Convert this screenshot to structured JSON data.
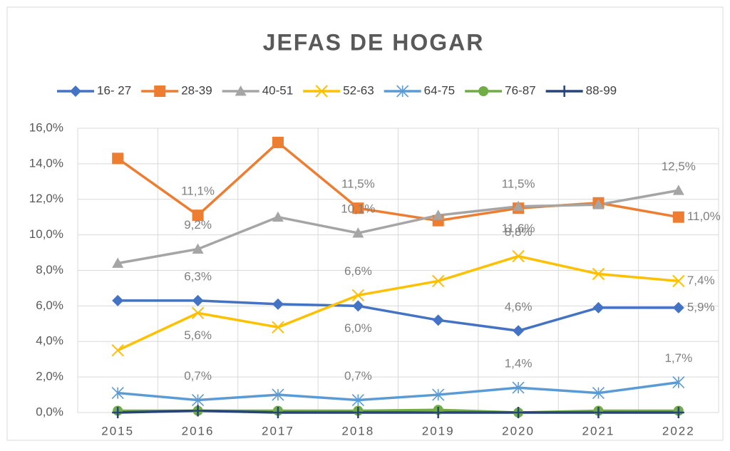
{
  "chart_data": {
    "type": "line",
    "title": "JEFAS DE HOGAR",
    "categories": [
      "2015",
      "2016",
      "2017",
      "2018",
      "2019",
      "2020",
      "2021",
      "2022"
    ],
    "ylim": [
      0,
      16
    ],
    "yticks": [
      {
        "value": 0,
        "label": "0,0%"
      },
      {
        "value": 2,
        "label": "2,0%"
      },
      {
        "value": 4,
        "label": "4,0%"
      },
      {
        "value": 6,
        "label": "6,0%"
      },
      {
        "value": 8,
        "label": "8,0%"
      },
      {
        "value": 10,
        "label": "10,0%"
      },
      {
        "value": 12,
        "label": "12,0%"
      },
      {
        "value": 14,
        "label": "14,0%"
      },
      {
        "value": 16,
        "label": "16,0%"
      }
    ],
    "grid": true,
    "legend": "top",
    "series": [
      {
        "name": "16- 27",
        "color": "#4472c4",
        "marker": "diamond",
        "values": [
          6.3,
          6.3,
          6.1,
          6.0,
          5.2,
          4.6,
          5.9,
          5.9
        ],
        "value_labels": [
          null,
          "6,3%",
          null,
          "6,0%",
          null,
          "4,6%",
          null,
          "5,9%"
        ]
      },
      {
        "name": "28-39",
        "color": "#ed7d31",
        "marker": "square",
        "values": [
          14.3,
          11.1,
          15.2,
          11.5,
          10.8,
          11.5,
          11.8,
          11.0
        ],
        "value_labels": [
          null,
          "11,1%",
          null,
          "11,5%",
          null,
          "11,5%",
          null,
          "11,0%"
        ]
      },
      {
        "name": "40-51",
        "color": "#a5a5a5",
        "marker": "triangle",
        "values": [
          8.4,
          9.2,
          11.0,
          10.1,
          11.1,
          11.6,
          11.7,
          12.5
        ],
        "value_labels": [
          null,
          "9,2%",
          null,
          "10,1%",
          null,
          "11,6%",
          null,
          "12,5%"
        ]
      },
      {
        "name": "52-63",
        "color": "#ffc000",
        "marker": "x",
        "values": [
          3.5,
          5.6,
          4.8,
          6.6,
          7.4,
          8.8,
          7.8,
          7.4
        ],
        "value_labels": [
          null,
          "5,6%",
          null,
          "6,6%",
          null,
          "8,8%",
          null,
          "7,4%"
        ]
      },
      {
        "name": "64-75",
        "color": "#5b9bd5",
        "marker": "star",
        "values": [
          1.1,
          0.7,
          1.0,
          0.7,
          1.0,
          1.4,
          1.1,
          1.7
        ],
        "value_labels": [
          null,
          "0,7%",
          null,
          "0,7%",
          null,
          "1,4%",
          null,
          "1,7%"
        ]
      },
      {
        "name": "76-87",
        "color": "#70ad47",
        "marker": "circle",
        "values": [
          0.1,
          0.1,
          0.1,
          0.1,
          0.15,
          0.0,
          0.1,
          0.1
        ]
      },
      {
        "name": "88-99",
        "color": "#264478",
        "marker": "plus",
        "values": [
          0.0,
          0.1,
          0.0,
          0.0,
          0.0,
          0.0,
          0.0,
          0.0
        ]
      }
    ]
  }
}
